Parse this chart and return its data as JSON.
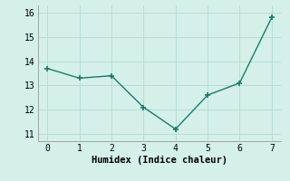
{
  "x": [
    0,
    1,
    2,
    3,
    4,
    5,
    6,
    7
  ],
  "y": [
    13.7,
    13.3,
    13.4,
    12.1,
    11.2,
    12.6,
    13.1,
    15.8
  ],
  "line_color": "#1a7a6e",
  "marker": "+",
  "marker_size": 4,
  "linewidth": 1.0,
  "xlabel": "Humidex (Indice chaleur)",
  "xlim": [
    -0.3,
    7.3
  ],
  "ylim": [
    10.7,
    16.3
  ],
  "yticks": [
    11,
    12,
    13,
    14,
    15,
    16
  ],
  "xticks": [
    0,
    1,
    2,
    3,
    4,
    5,
    6,
    7
  ],
  "background_color": "#d4f0e8",
  "grid_color": "#b8ddd5",
  "xlabel_fontsize": 7.5,
  "tick_fontsize": 7,
  "font_family": "monospace"
}
